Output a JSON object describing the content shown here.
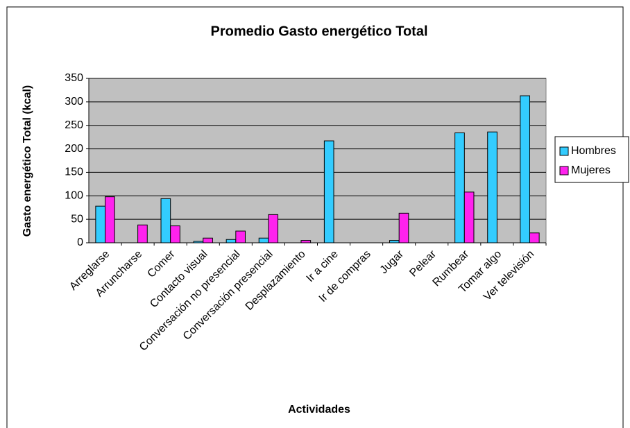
{
  "chart_data": {
    "type": "bar",
    "title": "Promedio Gasto energético Total",
    "x_label": "Actividades",
    "y_label": "Gasto energético Total (kcal)",
    "categories": [
      "Arreglarse",
      "Arruncharse",
      "Comer",
      "Contacto visual",
      "Conversación no presencial",
      "Conversación presencial",
      "Desplazamiento",
      "Ir a cine",
      "Ir de compras",
      "Jugar",
      "Pelear",
      "Rumbear",
      "Tomar algo",
      "Ver televisión"
    ],
    "series": [
      {
        "name": "Hombres",
        "color": "#33ccff",
        "values": [
          78,
          0,
          94,
          3,
          7,
          10,
          0,
          217,
          0,
          5,
          0,
          234,
          236,
          313
        ]
      },
      {
        "name": "Mujeres",
        "color": "#ff22ee",
        "values": [
          98,
          38,
          36,
          10,
          25,
          60,
          5,
          0,
          0,
          63,
          0,
          108,
          0,
          21
        ]
      }
    ],
    "ylim": [
      0,
      350
    ],
    "yticks": [
      0,
      50,
      100,
      150,
      200,
      250,
      300,
      350
    ],
    "grid": true,
    "legend": "right"
  }
}
